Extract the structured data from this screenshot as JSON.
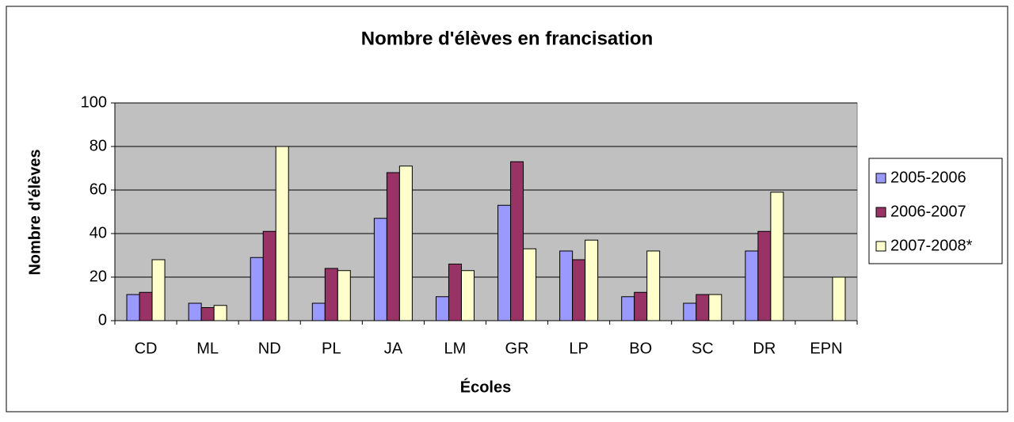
{
  "chart_data": {
    "type": "bar",
    "title": "Nombre d'élèves en francisation",
    "x_label": "Écoles",
    "y_label": "Nombre d'élèves",
    "categories": [
      "CD",
      "ML",
      "ND",
      "PL",
      "JA",
      "LM",
      "GR",
      "LP",
      "BO",
      "SC",
      "DR",
      "EPN"
    ],
    "series": [
      {
        "name": "2005-2006",
        "color": "#9999ff",
        "values": [
          12,
          8,
          29,
          8,
          47,
          11,
          53,
          32,
          11,
          8,
          32,
          null
        ]
      },
      {
        "name": "2006-2007",
        "color": "#993366",
        "values": [
          13,
          6,
          41,
          24,
          68,
          26,
          73,
          28,
          13,
          12,
          41,
          null
        ]
      },
      {
        "name": "2007-2008*",
        "color": "#ffffcc",
        "values": [
          28,
          7,
          80,
          23,
          71,
          23,
          33,
          37,
          32,
          12,
          59,
          20
        ]
      }
    ],
    "ylim": [
      0,
      100
    ],
    "yticks": [
      0,
      20,
      40,
      60,
      80,
      100
    ],
    "grid": true,
    "legend": "right"
  }
}
